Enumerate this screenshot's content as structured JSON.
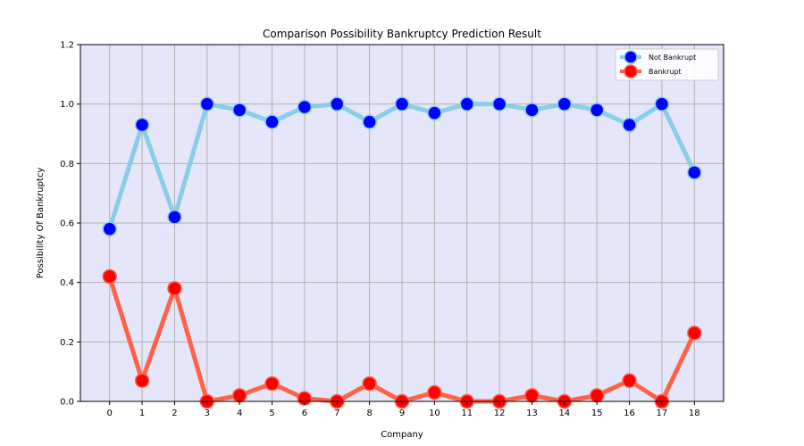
{
  "chart_data": {
    "type": "line",
    "title": "Comparison Possibility Bankruptcy Prediction Result",
    "xlabel": "Company",
    "ylabel": "Possibility Of Bankruptcy",
    "x": [
      0,
      1,
      2,
      3,
      4,
      5,
      6,
      7,
      8,
      9,
      10,
      11,
      12,
      13,
      14,
      15,
      16,
      17,
      18
    ],
    "xlim": [
      -0.9,
      18.9
    ],
    "ylim": [
      0,
      1.2
    ],
    "yticks": [
      0.0,
      0.2,
      0.4,
      0.6,
      0.8,
      1.0,
      1.2
    ],
    "ytick_labels": [
      "0.0",
      "0.2",
      "0.4",
      "0.6",
      "0.8",
      "1.0",
      "1.2"
    ],
    "grid": true,
    "plot_background": "#e6e6fa",
    "legend_position": "top-right",
    "series": [
      {
        "name": "Not Bankrupt",
        "values": [
          0.58,
          0.93,
          0.62,
          1.0,
          0.98,
          0.94,
          0.99,
          1.0,
          0.94,
          1.0,
          0.97,
          1.0,
          1.0,
          0.98,
          1.0,
          0.98,
          0.93,
          1.0,
          0.77
        ],
        "line_color": "#87ceeb",
        "marker_color": "#0000ff"
      },
      {
        "name": "Bankrupt",
        "values": [
          0.42,
          0.07,
          0.38,
          0.0,
          0.02,
          0.06,
          0.01,
          0.0,
          0.06,
          0.0,
          0.03,
          0.0,
          0.0,
          0.02,
          0.0,
          0.02,
          0.07,
          0.0,
          0.23
        ],
        "line_color": "#ff6347",
        "marker_color": "#ff0000"
      }
    ]
  }
}
